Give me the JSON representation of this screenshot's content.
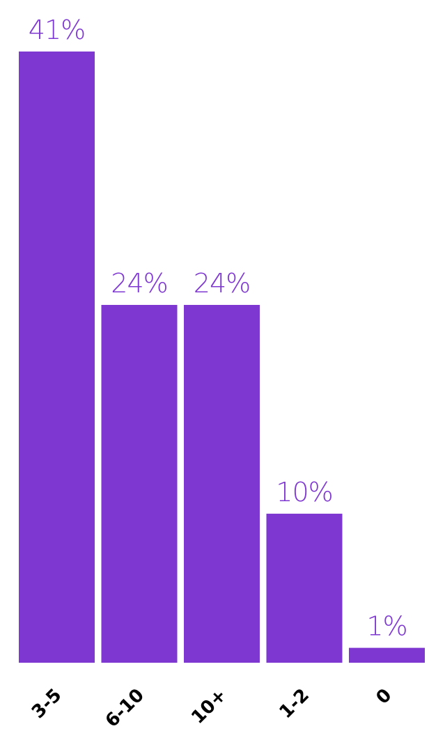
{
  "colors": {
    "bar": "#7e37d0",
    "value_label": "#7e37d0",
    "tick_label": "#000000",
    "background": "#ffffff"
  },
  "chart_data": {
    "type": "bar",
    "title": "",
    "xlabel": "",
    "ylabel": "",
    "categories": [
      "3-5",
      "6-10",
      "10+",
      "1-2",
      "0"
    ],
    "values": [
      41,
      24,
      24,
      10,
      1
    ],
    "value_labels": [
      "41%",
      "24%",
      "24%",
      "10%",
      "1%"
    ],
    "ylim": [
      0,
      41
    ],
    "grid": false,
    "legend": "none"
  }
}
